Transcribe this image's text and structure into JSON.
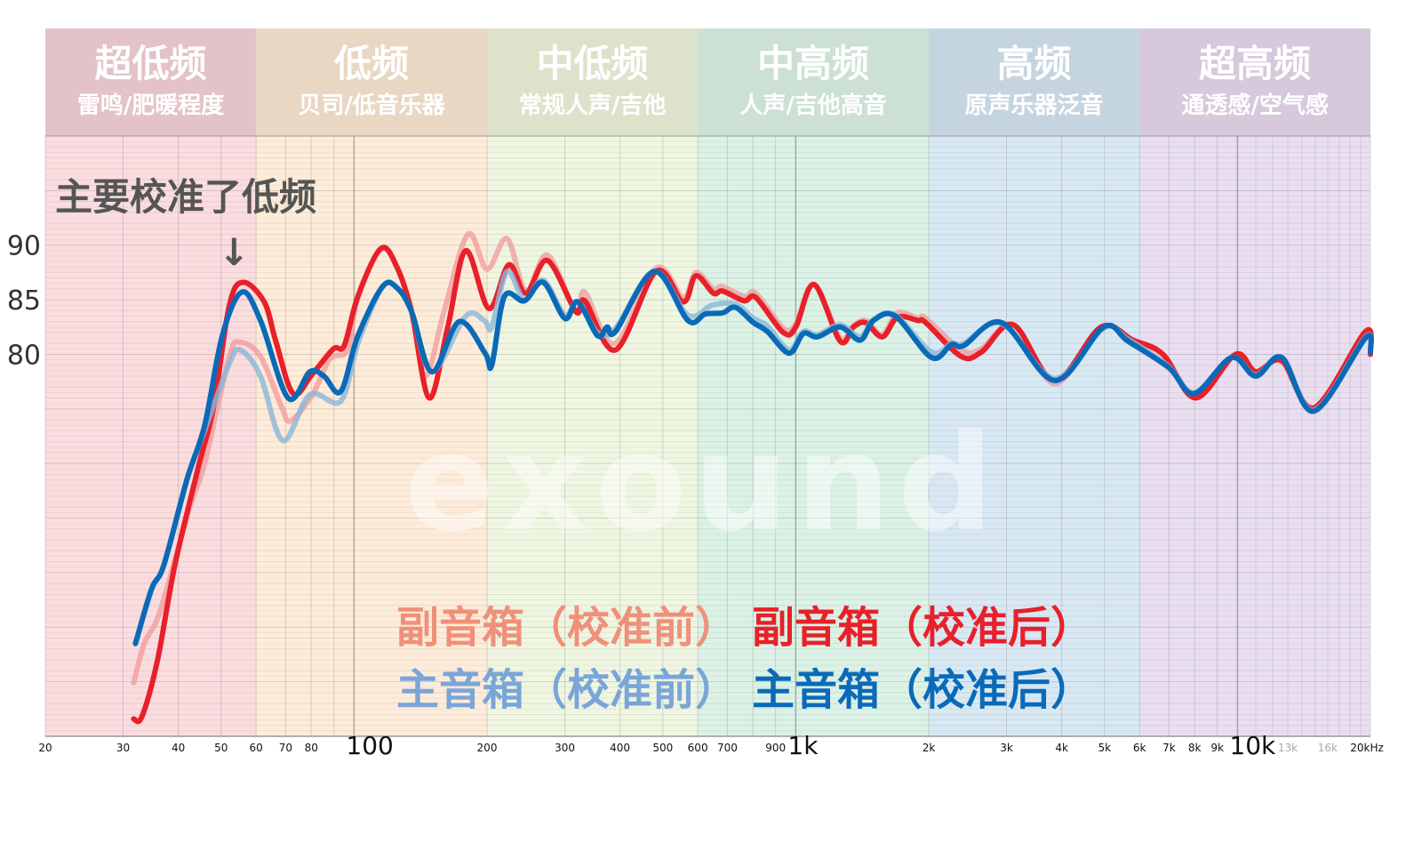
{
  "chart_data": {
    "type": "line",
    "xscale": "log",
    "xlim": [
      20,
      20000
    ],
    "ylim": [
      45,
      100
    ],
    "grid": true,
    "legend_placement": "bottom-center",
    "yticks": [
      {
        "v": 90,
        "label": "90"
      },
      {
        "v": 85,
        "label": "85"
      },
      {
        "v": 80,
        "label": "80"
      }
    ],
    "xticks": [
      {
        "f": 20,
        "label": "20"
      },
      {
        "f": 30,
        "label": "30"
      },
      {
        "f": 40,
        "label": "40"
      },
      {
        "f": 50,
        "label": "50"
      },
      {
        "f": 60,
        "label": "60"
      },
      {
        "f": 70,
        "label": "70"
      },
      {
        "f": 80,
        "label": "80"
      },
      {
        "f": 100,
        "label": "100",
        "style": "big"
      },
      {
        "f": 200,
        "label": "200"
      },
      {
        "f": 300,
        "label": "300"
      },
      {
        "f": 400,
        "label": "400"
      },
      {
        "f": 500,
        "label": "500"
      },
      {
        "f": 600,
        "label": "600"
      },
      {
        "f": 700,
        "label": "700"
      },
      {
        "f": 900,
        "label": "900"
      },
      {
        "f": 1000,
        "label": "1k",
        "style": "big"
      },
      {
        "f": 2000,
        "label": "2k"
      },
      {
        "f": 3000,
        "label": "3k"
      },
      {
        "f": 4000,
        "label": "4k"
      },
      {
        "f": 5000,
        "label": "5k"
      },
      {
        "f": 6000,
        "label": "6k"
      },
      {
        "f": 7000,
        "label": "7k"
      },
      {
        "f": 8000,
        "label": "8k"
      },
      {
        "f": 9000,
        "label": "9k"
      },
      {
        "f": 10000,
        "label": "10k",
        "style": "big"
      },
      {
        "f": 13000,
        "label": "13k",
        "style": "grey"
      },
      {
        "f": 16000,
        "label": "16k",
        "style": "grey"
      },
      {
        "f": 20000,
        "label": "20kHz"
      }
    ],
    "bands": [
      {
        "title": "超低频",
        "subtitle": "雷鸣/肥暖程度",
        "range": [
          20,
          60
        ],
        "header_color": "#e3c3c7",
        "fill_color": "#fbdde0"
      },
      {
        "title": "低频",
        "subtitle": "贝司/低音乐器",
        "range": [
          60,
          200
        ],
        "header_color": "#e9d7c3",
        "fill_color": "#fdecd9"
      },
      {
        "title": "中低频",
        "subtitle": "常规人声/吉他",
        "range": [
          200,
          600
        ],
        "header_color": "#dde2cb",
        "fill_color": "#eff6e1"
      },
      {
        "title": "中高频",
        "subtitle": "人声/吉他高音",
        "range": [
          600,
          2000
        ],
        "header_color": "#cce0d3",
        "fill_color": "#dcf2e6"
      },
      {
        "title": "高频",
        "subtitle": "原声乐器泛音",
        "range": [
          2000,
          6000
        ],
        "header_color": "#c5d5df",
        "fill_color": "#d9e9f4"
      },
      {
        "title": "超高频",
        "subtitle": "通透感/空气感",
        "range": [
          6000,
          20000
        ],
        "header_color": "#d5c9db",
        "fill_color": "#e9dff0"
      }
    ],
    "annotation": {
      "text": "主要校准了低频",
      "arrow": "↓",
      "target_freq": 54
    },
    "watermark": "exound",
    "series": [
      {
        "name": "副音箱（校准前）",
        "color": "#f0907a",
        "line_color": "#f29a9a",
        "opacity": 0.75,
        "points": [
          [
            31.7,
            49.9
          ],
          [
            33.5,
            53.5
          ],
          [
            36.4,
            56.5
          ],
          [
            42.4,
            65.9
          ],
          [
            45.9,
            70
          ],
          [
            52.2,
            79.8
          ],
          [
            55.2,
            81.1
          ],
          [
            61.4,
            79.8
          ],
          [
            68.5,
            75.2
          ],
          [
            71.8,
            73.9
          ],
          [
            80.5,
            76.3
          ],
          [
            88.3,
            79.6
          ],
          [
            96.7,
            80.4
          ],
          [
            102,
            85.3
          ],
          [
            115,
            89.6
          ],
          [
            125,
            88
          ],
          [
            135,
            83.9
          ],
          [
            145,
            78
          ],
          [
            160,
            84
          ],
          [
            181,
            91
          ],
          [
            200,
            87.8
          ],
          [
            222,
            90.6
          ],
          [
            245,
            85.8
          ],
          [
            274,
            89.1
          ],
          [
            318,
            83.9
          ],
          [
            333,
            85.7
          ],
          [
            389,
            81
          ],
          [
            483,
            87.9
          ],
          [
            556,
            85.2
          ],
          [
            594,
            87.5
          ],
          [
            651,
            86
          ],
          [
            683,
            86.2
          ],
          [
            764,
            85.3
          ],
          [
            812,
            85.6
          ],
          [
            937,
            82.4
          ],
          [
            1000,
            82.8
          ],
          [
            1100,
            86.4
          ],
          [
            1260,
            81.5
          ],
          [
            1350,
            82.6
          ],
          [
            1440,
            83.1
          ],
          [
            1570,
            81.8
          ],
          [
            1700,
            83.8
          ],
          [
            1890,
            83.3
          ],
          [
            1970,
            83.3
          ],
          [
            2370,
            80.4
          ],
          [
            2630,
            80.5
          ],
          [
            3110,
            82.7
          ],
          [
            3860,
            77.3
          ],
          [
            4910,
            82.5
          ],
          [
            5800,
            81.1
          ],
          [
            6780,
            80
          ],
          [
            8040,
            76.2
          ],
          [
            9900,
            80
          ],
          [
            11000,
            78.4
          ],
          [
            12600,
            79.4
          ],
          [
            14900,
            75.1
          ],
          [
            19500,
            82
          ],
          [
            20000,
            80
          ]
        ]
      },
      {
        "name": "副音箱（校准后）",
        "color": "#e8202a",
        "line_color": "#e8202a",
        "opacity": 1,
        "points": [
          [
            31.7,
            46.6
          ],
          [
            33.1,
            46.8
          ],
          [
            35.9,
            52
          ],
          [
            39.3,
            60.7
          ],
          [
            44.5,
            69.8
          ],
          [
            48.1,
            75.2
          ],
          [
            52.2,
            84.5
          ],
          [
            56.1,
            86.6
          ],
          [
            62.6,
            84.8
          ],
          [
            66.5,
            81.2
          ],
          [
            72.8,
            76.4
          ],
          [
            80.5,
            78.2
          ],
          [
            89.8,
            80.5
          ],
          [
            95,
            80.8
          ],
          [
            102,
            85.3
          ],
          [
            115,
            89.7
          ],
          [
            125,
            88
          ],
          [
            135,
            83.9
          ],
          [
            148,
            76
          ],
          [
            163,
            82.5
          ],
          [
            179,
            89.5
          ],
          [
            202,
            84.2
          ],
          [
            224,
            88.2
          ],
          [
            245,
            85.6
          ],
          [
            274,
            88.6
          ],
          [
            318,
            83.9
          ],
          [
            333,
            84.9
          ],
          [
            391,
            80.4
          ],
          [
            483,
            87.6
          ],
          [
            556,
            84.8
          ],
          [
            594,
            87.2
          ],
          [
            651,
            85.6
          ],
          [
            683,
            85.8
          ],
          [
            764,
            84.9
          ],
          [
            812,
            85.2
          ],
          [
            937,
            82
          ],
          [
            1000,
            82.5
          ],
          [
            1100,
            86.4
          ],
          [
            1260,
            81.2
          ],
          [
            1350,
            82.5
          ],
          [
            1440,
            82.9
          ],
          [
            1570,
            81.6
          ],
          [
            1700,
            83.4
          ],
          [
            1890,
            83.1
          ],
          [
            1970,
            82.9
          ],
          [
            2370,
            79.8
          ],
          [
            2630,
            80.2
          ],
          [
            3110,
            82.7
          ],
          [
            3860,
            77.6
          ],
          [
            4910,
            82.5
          ],
          [
            5800,
            81.3
          ],
          [
            6780,
            80
          ],
          [
            8040,
            76
          ],
          [
            9900,
            80
          ],
          [
            11000,
            78.4
          ],
          [
            12600,
            79.4
          ],
          [
            14900,
            75.1
          ],
          [
            19500,
            82.1
          ],
          [
            20000,
            80
          ]
        ]
      },
      {
        "name": "主音箱（校准前）",
        "color": "#7aa5d8",
        "line_color": "#8ab6d8",
        "opacity": 0.8,
        "points": [
          [
            32,
            53.5
          ],
          [
            34.8,
            58.5
          ],
          [
            37.1,
            60.7
          ],
          [
            41.9,
            68.6
          ],
          [
            45.9,
            73
          ],
          [
            52,
            79
          ],
          [
            55.2,
            80.4
          ],
          [
            61.4,
            78
          ],
          [
            69,
            72.1
          ],
          [
            79.4,
            76.3
          ],
          [
            93.3,
            75.7
          ],
          [
            102,
            81
          ],
          [
            116,
            86.2
          ],
          [
            125,
            86.1
          ],
          [
            135,
            83.9
          ],
          [
            150,
            78.4
          ],
          [
            179,
            83.5
          ],
          [
            197,
            83.1
          ],
          [
            205,
            82.5
          ],
          [
            222,
            87.6
          ],
          [
            243,
            85
          ],
          [
            268,
            86.8
          ],
          [
            300,
            83.6
          ],
          [
            321,
            84.8
          ],
          [
            356,
            82
          ],
          [
            391,
            82.4
          ],
          [
            478,
            87.6
          ],
          [
            570,
            83.6
          ],
          [
            647,
            84.5
          ],
          [
            730,
            84.6
          ],
          [
            802,
            83.3
          ],
          [
            862,
            82.6
          ],
          [
            966,
            80.4
          ],
          [
            1040,
            82.1
          ],
          [
            1120,
            81.8
          ],
          [
            1260,
            82.7
          ],
          [
            1400,
            81.6
          ],
          [
            1500,
            83.2
          ],
          [
            1680,
            83.6
          ],
          [
            2030,
            80.2
          ],
          [
            2250,
            81
          ],
          [
            2400,
            81
          ],
          [
            2930,
            82.8
          ],
          [
            3860,
            77.8
          ],
          [
            4980,
            82.4
          ],
          [
            5650,
            81.4
          ],
          [
            6980,
            78.9
          ],
          [
            7980,
            76.5
          ],
          [
            9690,
            79.7
          ],
          [
            11000,
            78.1
          ],
          [
            12600,
            79.7
          ],
          [
            14900,
            74.9
          ],
          [
            19500,
            81.6
          ],
          [
            20000,
            80.2
          ]
        ]
      },
      {
        "name": "主音箱（校准后）",
        "color": "#0a6ab8",
        "line_color": "#0a6ab8",
        "opacity": 1,
        "points": [
          [
            32,
            53.5
          ],
          [
            34.8,
            58.5
          ],
          [
            37.1,
            60.7
          ],
          [
            41.9,
            68.6
          ],
          [
            45.9,
            73.5
          ],
          [
            50.3,
            81.7
          ],
          [
            55.7,
            85.7
          ],
          [
            61.4,
            83.1
          ],
          [
            70.9,
            76
          ],
          [
            79.4,
            78.4
          ],
          [
            85.5,
            78
          ],
          [
            93.3,
            76.6
          ],
          [
            102,
            81.7
          ],
          [
            116,
            86.2
          ],
          [
            125,
            86.1
          ],
          [
            135,
            83.9
          ],
          [
            150,
            78.4
          ],
          [
            173,
            83
          ],
          [
            198,
            80.1
          ],
          [
            205,
            79
          ],
          [
            219,
            85.3
          ],
          [
            243,
            84.9
          ],
          [
            268,
            86.6
          ],
          [
            300,
            83.3
          ],
          [
            321,
            84.8
          ],
          [
            356,
            81.7
          ],
          [
            374,
            82.5
          ],
          [
            391,
            82.1
          ],
          [
            478,
            87.6
          ],
          [
            570,
            83.1
          ],
          [
            624,
            83.7
          ],
          [
            683,
            83.8
          ],
          [
            730,
            84.3
          ],
          [
            802,
            82.9
          ],
          [
            862,
            82.1
          ],
          [
            966,
            80.1
          ],
          [
            1040,
            81.9
          ],
          [
            1120,
            81.6
          ],
          [
            1260,
            82.5
          ],
          [
            1400,
            81.3
          ],
          [
            1500,
            83.1
          ],
          [
            1680,
            83.5
          ],
          [
            2030,
            79.7
          ],
          [
            2250,
            80.9
          ],
          [
            2400,
            80.8
          ],
          [
            2930,
            82.9
          ],
          [
            3860,
            77.6
          ],
          [
            4980,
            82.5
          ],
          [
            5650,
            81.2
          ],
          [
            6980,
            78.8
          ],
          [
            7980,
            76.4
          ],
          [
            9690,
            79.7
          ],
          [
            11000,
            78
          ],
          [
            12600,
            79.7
          ],
          [
            14900,
            74.8
          ],
          [
            19500,
            81.5
          ],
          [
            20000,
            80.2
          ]
        ]
      }
    ]
  }
}
